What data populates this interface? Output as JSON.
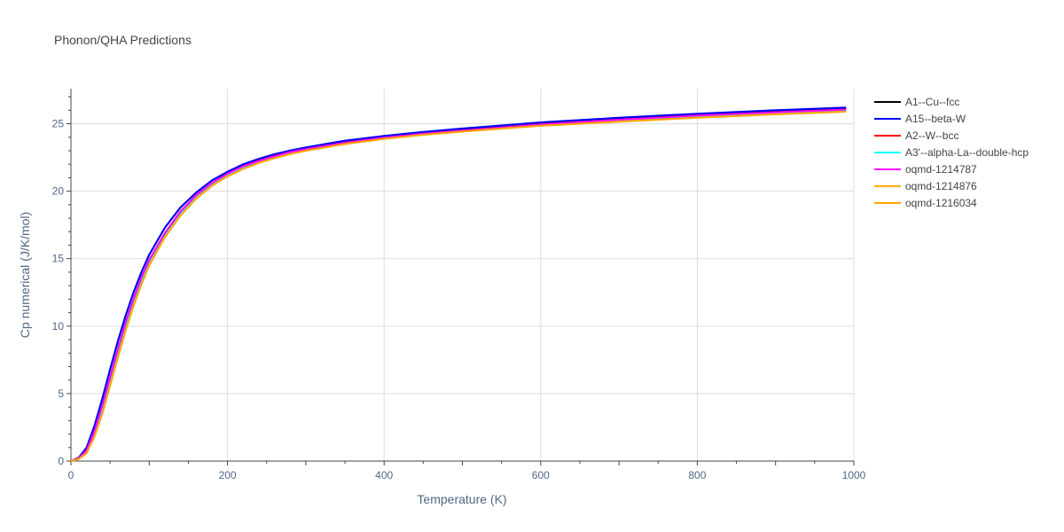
{
  "chart_data": {
    "type": "line",
    "title": "Phonon/QHA Predictions",
    "xlabel": "Temperature (K)",
    "ylabel": "Cp numerical (J/K/mol)",
    "xlim": [
      0,
      1000
    ],
    "ylim": [
      0,
      27.6
    ],
    "xticks": [
      0,
      200,
      400,
      600,
      800,
      1000
    ],
    "yticks": [
      0,
      5,
      10,
      15,
      20,
      25
    ],
    "grid": true,
    "legend_position": "top-right",
    "x": [
      0,
      10,
      20,
      30,
      40,
      50,
      60,
      70,
      80,
      90,
      100,
      120,
      140,
      160,
      180,
      200,
      220,
      240,
      260,
      280,
      300,
      350,
      400,
      450,
      500,
      600,
      700,
      800,
      900,
      990
    ],
    "series": [
      {
        "name": "A1--Cu--fcc",
        "color": "#000000",
        "values": [
          0,
          0.25,
          1.0,
          2.6,
          4.6,
          6.8,
          8.9,
          10.8,
          12.5,
          14.0,
          15.3,
          17.3,
          18.8,
          19.9,
          20.8,
          21.4,
          21.95,
          22.35,
          22.7,
          22.98,
          23.2,
          23.7,
          24.05,
          24.35,
          24.6,
          25.05,
          25.4,
          25.7,
          25.95,
          26.15
        ]
      },
      {
        "name": "A15--beta-W",
        "color": "#0000ff",
        "values": [
          0,
          0.25,
          1.0,
          2.6,
          4.6,
          6.8,
          8.9,
          10.8,
          12.5,
          14.0,
          15.3,
          17.3,
          18.8,
          19.9,
          20.8,
          21.45,
          22.0,
          22.4,
          22.75,
          23.02,
          23.25,
          23.75,
          24.1,
          24.4,
          24.65,
          25.1,
          25.45,
          25.75,
          26.0,
          26.2
        ]
      },
      {
        "name": "A2--W--bcc",
        "color": "#ff0000",
        "values": [
          0,
          0.2,
          0.8,
          2.2,
          4.1,
          6.2,
          8.3,
          10.3,
          12.0,
          13.6,
          14.9,
          16.9,
          18.5,
          19.7,
          20.6,
          21.3,
          21.85,
          22.25,
          22.6,
          22.9,
          23.12,
          23.6,
          23.97,
          24.27,
          24.5,
          24.95,
          25.3,
          25.6,
          25.85,
          26.05
        ]
      },
      {
        "name": "A3'--alpha-La--double-hcp",
        "color": "#00ffff",
        "values": [
          0,
          0.15,
          0.6,
          1.9,
          3.7,
          5.8,
          7.9,
          9.9,
          11.7,
          13.3,
          14.6,
          16.7,
          18.3,
          19.5,
          20.45,
          21.15,
          21.7,
          22.15,
          22.5,
          22.8,
          23.05,
          23.55,
          23.92,
          24.22,
          24.45,
          24.9,
          25.2,
          25.5,
          25.75,
          25.95
        ]
      },
      {
        "name": "oqmd-1214787",
        "color": "#ff00ff",
        "values": [
          0,
          0.2,
          0.8,
          2.2,
          4.1,
          6.2,
          8.3,
          10.3,
          12.0,
          13.6,
          14.9,
          16.9,
          18.5,
          19.7,
          20.6,
          21.3,
          21.85,
          22.25,
          22.6,
          22.9,
          23.12,
          23.6,
          23.97,
          24.27,
          24.5,
          24.95,
          25.3,
          25.6,
          25.85,
          26.05
        ]
      },
      {
        "name": "oqmd-1214876",
        "color": "#ffb000",
        "values": [
          0,
          0.15,
          0.6,
          1.8,
          3.5,
          5.6,
          7.7,
          9.7,
          11.5,
          13.1,
          14.5,
          16.6,
          18.2,
          19.45,
          20.4,
          21.1,
          21.65,
          22.1,
          22.45,
          22.75,
          23.0,
          23.5,
          23.88,
          24.18,
          24.42,
          24.85,
          25.15,
          25.45,
          25.7,
          25.9
        ]
      },
      {
        "name": "oqmd-1216034",
        "color": "#ffa500",
        "values": [
          0,
          0.15,
          0.6,
          1.8,
          3.5,
          5.6,
          7.7,
          9.7,
          11.5,
          13.1,
          14.5,
          16.6,
          18.2,
          19.45,
          20.4,
          21.1,
          21.65,
          22.1,
          22.45,
          22.75,
          23.0,
          23.5,
          23.88,
          24.18,
          24.42,
          24.85,
          25.15,
          25.45,
          25.7,
          25.9
        ]
      }
    ]
  }
}
